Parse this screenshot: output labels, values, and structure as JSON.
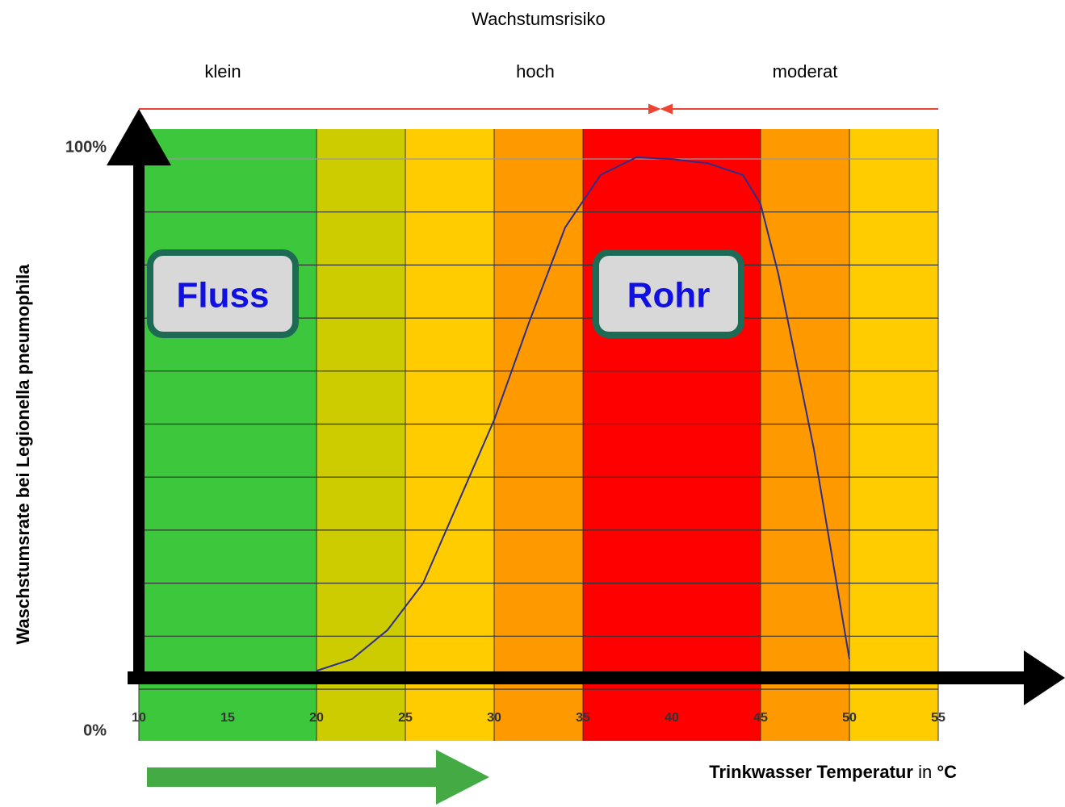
{
  "chart_data": {
    "type": "line",
    "title": "Wachstumsrisiko",
    "risk_labels": [
      "klein",
      "hoch",
      "moderat"
    ],
    "y_label": "Waschstumsrate bei Legionella pneumophila",
    "x_label": [
      "Trinkwasser Temperatur",
      "in",
      "°C"
    ],
    "annotations": [
      "Fluss",
      "Rohr"
    ],
    "bands": [
      {
        "from": 10,
        "to": 20,
        "color": "#3cc73c"
      },
      {
        "from": 20,
        "to": 25,
        "color": "#cccc00"
      },
      {
        "from": 25,
        "to": 30,
        "color": "#ffcc00"
      },
      {
        "from": 30,
        "to": 35,
        "color": "#ff9900"
      },
      {
        "from": 35,
        "to": 45,
        "color": "#ff0000"
      },
      {
        "from": 45,
        "to": 50,
        "color": "#ff9900"
      },
      {
        "from": 50,
        "to": 55,
        "color": "#ffcc00"
      }
    ],
    "x": [
      20,
      22,
      24,
      26,
      28,
      30,
      32,
      34,
      36,
      38,
      40,
      42,
      44,
      45,
      46,
      48,
      50
    ],
    "series": [
      {
        "color": "#2e2e8a",
        "values": [
          12,
          14,
          19,
          27,
          41,
          55,
          72,
          88,
          97,
          100,
          99.7,
          99,
          97,
          92,
          80,
          50,
          14
        ]
      }
    ],
    "xlim": [
      10,
      55
    ],
    "xticks": [
      10,
      15,
      20,
      25,
      30,
      35,
      40,
      45,
      50,
      55
    ],
    "ylim": [
      0,
      100
    ],
    "yticks": [
      {
        "value": 0,
        "label": "0%"
      },
      {
        "value": 100,
        "label": "100%"
      }
    ]
  }
}
